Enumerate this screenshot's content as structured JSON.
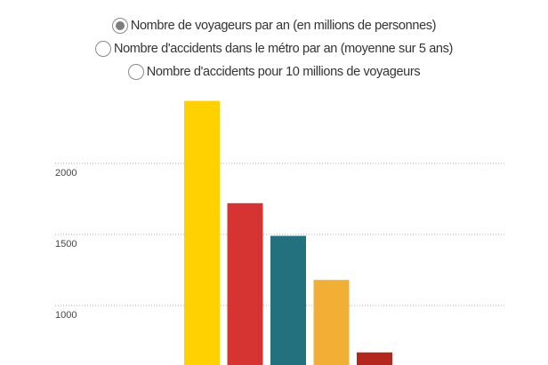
{
  "options": [
    {
      "label": "Nombre de voyageurs par an (en millions de personnes)",
      "selected": true
    },
    {
      "label": "Nombre d'accidents dans le métro par an (moyenne sur 5 ans)",
      "selected": false
    },
    {
      "label": "Nombre d'accidents pour 10 millions de voyageurs",
      "selected": false
    }
  ],
  "chart_data": {
    "type": "bar",
    "title": "",
    "xlabel": "",
    "ylabel": "",
    "categories": [
      "",
      "",
      "",
      "",
      ""
    ],
    "values": [
      2440,
      1720,
      1490,
      1180,
      670
    ],
    "colors": [
      "#ffd100",
      "#d63333",
      "#23707e",
      "#f2af35",
      "#b3271e"
    ],
    "y_ticks": [
      1000,
      1500,
      2000
    ],
    "ylim": [
      630,
      2520
    ],
    "grid": true,
    "gridline_color": "#aaaaaa"
  }
}
